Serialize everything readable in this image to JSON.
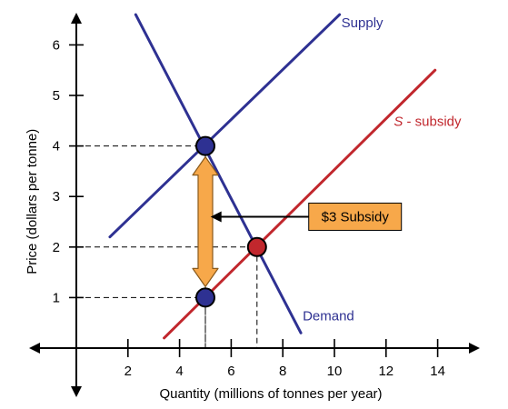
{
  "chart_data": {
    "type": "line",
    "title": "",
    "xlabel": "Quantity (millions of tonnes per year)",
    "ylabel": "Price (dollars per tonne)",
    "xlim": [
      -1,
      15
    ],
    "ylim": [
      -0.9,
      6.6
    ],
    "x_ticks": [
      2,
      4,
      6,
      8,
      10,
      12,
      14
    ],
    "y_ticks": [
      1,
      2,
      3,
      4,
      5,
      6
    ],
    "grid": false,
    "series": [
      {
        "name": "Supply",
        "label_prefix": "",
        "label_suffix": "Supply",
        "color": "#2e3192",
        "x": [
          1.3,
          10.2
        ],
        "y": [
          2.2,
          6.6
        ]
      },
      {
        "name": "S - subsidy",
        "label_prefix": "S",
        "label_suffix": " - subsidy",
        "color": "#c1272d",
        "x": [
          3.4,
          13.9
        ],
        "y": [
          0.2,
          5.5
        ]
      },
      {
        "name": "Demand",
        "label_prefix": "",
        "label_suffix": "Demand",
        "color": "#2e3192",
        "x": [
          2.3,
          8.7
        ],
        "y": [
          6.6,
          0.3
        ]
      }
    ],
    "points": [
      {
        "x": 5,
        "y": 4,
        "color": "#2e3192"
      },
      {
        "x": 5,
        "y": 1,
        "color": "#2e3192"
      },
      {
        "x": 7,
        "y": 2,
        "color": "#c1272d"
      }
    ],
    "subsidy_arrow": {
      "x": 5,
      "y_from": 1,
      "y_to": 4,
      "color": "#f7a84a"
    },
    "annotation": {
      "text": "$3 Subsidy",
      "x": 10.8,
      "y": 2.6,
      "arrow_to_x": 5.2,
      "box_color": "#f7a84a"
    }
  }
}
